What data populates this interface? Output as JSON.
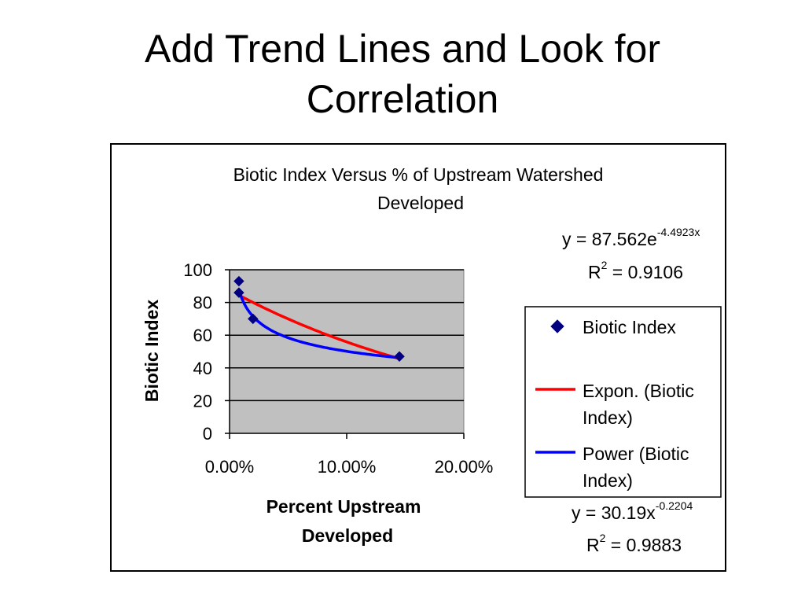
{
  "slide": {
    "title_line1": "Add Trend Lines and Look for",
    "title_line2": "Correlation"
  },
  "chart_data": {
    "type": "scatter",
    "title_line1": "Biotic Index Versus % of Upstream Watershed",
    "title_line2": "Developed",
    "xlabel_line1": "Percent Upstream",
    "xlabel_line2": "Developed",
    "ylabel": "Biotic Index",
    "xlim": [
      0,
      0.2
    ],
    "ylim": [
      0,
      100
    ],
    "x_ticks": [
      0,
      0.1,
      0.2
    ],
    "x_tick_labels": [
      "0.00%",
      "10.00%",
      "20.00%"
    ],
    "y_ticks": [
      0,
      20,
      40,
      60,
      80,
      100
    ],
    "y_tick_labels": [
      "0",
      "20",
      "40",
      "60",
      "80",
      "100"
    ],
    "plot_background": "#c0c0c0",
    "gridlines": "horizontal",
    "series": [
      {
        "name": "Biotic Index",
        "kind": "markers",
        "marker": "diamond",
        "color": "#000080",
        "x": [
          0.008,
          0.008,
          0.02,
          0.145
        ],
        "y": [
          93,
          86,
          70,
          47
        ]
      },
      {
        "name": "Expon. (Biotic Index)",
        "kind": "trendline",
        "model": "exponential",
        "color": "#ff0000",
        "coef_a": 87.562,
        "coef_b": -4.4923,
        "x_range": [
          0.008,
          0.145
        ]
      },
      {
        "name": "Power (Biotic Index)",
        "kind": "trendline",
        "model": "power",
        "color": "#0000ff",
        "coef_a": 30.19,
        "coef_b": -0.2204,
        "x_range": [
          0.008,
          0.145
        ]
      }
    ],
    "legend": {
      "position": "right",
      "entries": [
        {
          "label_line1": "Biotic Index",
          "label_line2": ""
        },
        {
          "label_line1": "Expon. (Biotic",
          "label_line2": "Index)"
        },
        {
          "label_line1": "Power (Biotic",
          "label_line2": "Index)"
        }
      ]
    },
    "equations": [
      {
        "eq_prefix": "y = 87.562e",
        "eq_exp": "-4.4923x",
        "r2_prefix": "R",
        "r2_sup": "2",
        "r2_value": " = 0.9106"
      },
      {
        "eq_prefix": "y = 30.19x",
        "eq_exp": "-0.2204",
        "r2_prefix": "R",
        "r2_sup": "2",
        "r2_value": " = 0.9883"
      }
    ]
  }
}
